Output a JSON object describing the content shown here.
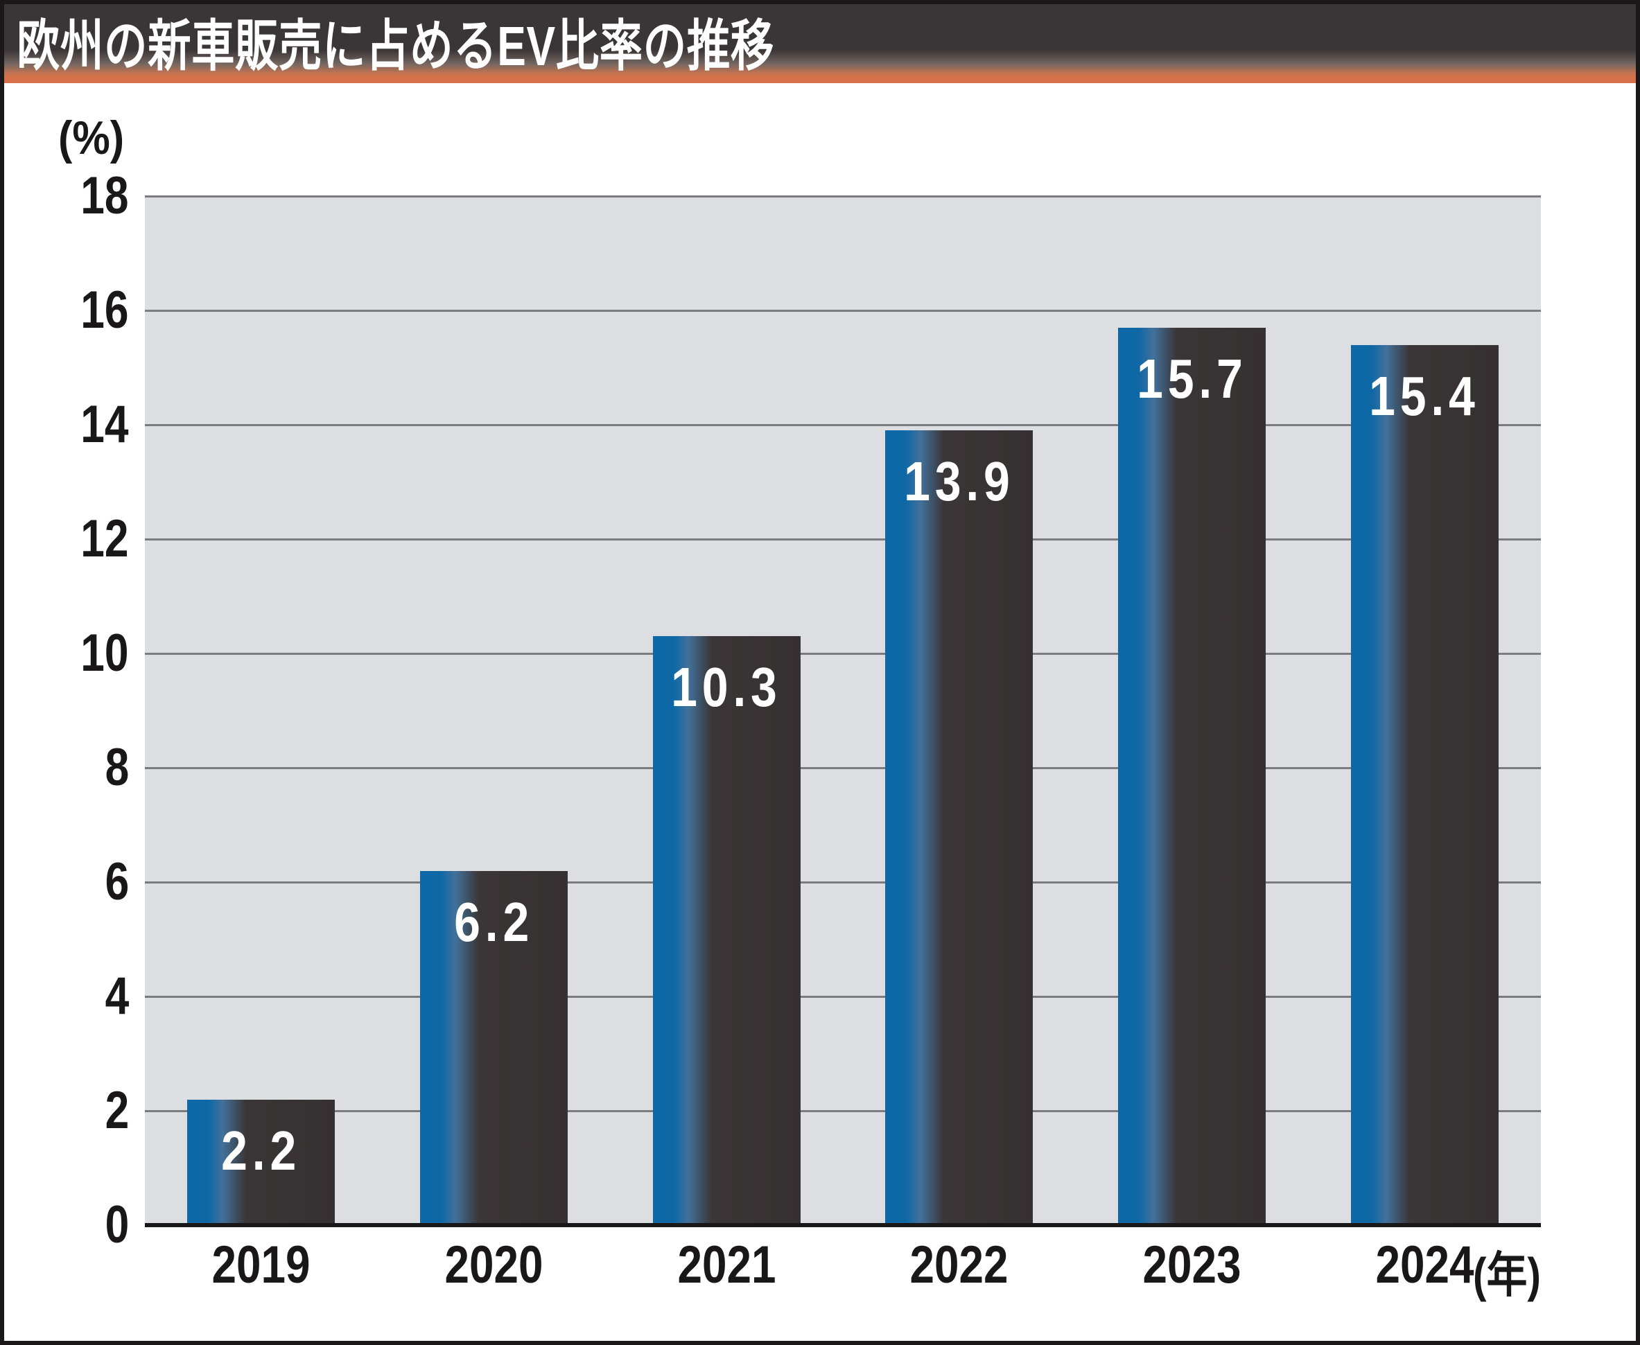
{
  "banner": {
    "title": "欧州の新車販売に占めるEV比率の推移",
    "colors": {
      "background_dark": "#3a3536",
      "background_orange": "#d7704a",
      "title_text": "#ffffff"
    }
  },
  "chart_data": {
    "type": "bar",
    "title": "欧州の新車販売に占めるEV比率の推移",
    "unit_label": "(%)",
    "x_suffix": "(年)",
    "categories": [
      "2019",
      "2020",
      "2021",
      "2022",
      "2023",
      "2024"
    ],
    "values": [
      2.2,
      6.2,
      10.3,
      13.9,
      15.7,
      15.4
    ],
    "value_labels": [
      "2.2",
      "6.2",
      "10.3",
      "13.9",
      "15.7",
      "15.4"
    ],
    "ylabel": "",
    "xlabel": "",
    "ylim": [
      0,
      18
    ],
    "ytick_step": 2,
    "yticks": [
      18,
      16,
      14,
      12,
      10,
      8,
      6,
      4,
      2,
      0
    ],
    "grid": "horizontal",
    "legend": "none",
    "colors": {
      "bar_blue": "#0e68a6",
      "bar_dark": "#353031",
      "plot_background": "#dcdee1",
      "gridline": "#7a7b7f",
      "axis_line": "#1a1718",
      "value_text": "#ffffff",
      "tick_text": "#1a1718"
    }
  }
}
